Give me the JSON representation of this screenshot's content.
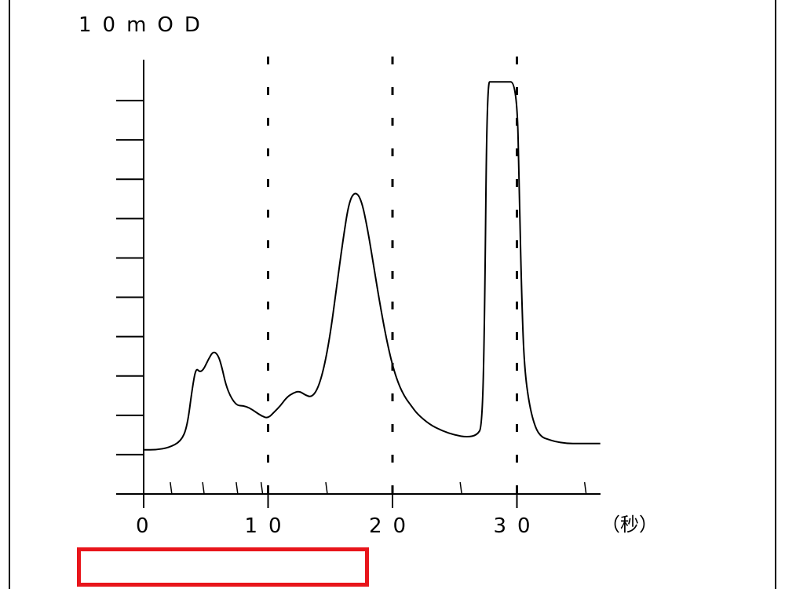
{
  "chart_data": {
    "type": "line",
    "ylabel": "10mOD",
    "xunit": "（秒）",
    "xlim": [
      0,
      37
    ],
    "ylim": [
      0,
      11
    ],
    "x_ticks": [
      {
        "value": 0,
        "label": "0"
      },
      {
        "value": 10,
        "label": "10"
      },
      {
        "value": 20,
        "label": "20"
      },
      {
        "value": 30,
        "label": "30"
      }
    ],
    "x_minor_ticks": [
      2.2,
      4.8,
      7.5,
      9.5,
      14.7,
      25.5,
      35.5
    ],
    "y_ticks": [
      1,
      2,
      3,
      4,
      5,
      6,
      7,
      8,
      9,
      10
    ],
    "gridlines_x": [
      10,
      20,
      30
    ],
    "series": [
      {
        "x": [
          0,
          1,
          2,
          3,
          3.5,
          3.9,
          4.2,
          4.5,
          4.8,
          5.2,
          5.6,
          6.0,
          6.3,
          6.6,
          7.0,
          7.5,
          8.0,
          8.5,
          9.0,
          9.5,
          10.0,
          10.5,
          11.0,
          11.5,
          12.0,
          12.5,
          13.0,
          13.5,
          14.0,
          14.5,
          15.0,
          15.5,
          16.0,
          16.5,
          17.0,
          17.5,
          18.0,
          18.5,
          19.0,
          19.5,
          20.0,
          20.5,
          21.0,
          21.5,
          22.0,
          23.0,
          24.0,
          25.0,
          26.0,
          26.8,
          27.2,
          27.4,
          27.6,
          28.0,
          29.0,
          30.0,
          30.2,
          30.4,
          30.6,
          31.0,
          31.5,
          32.0,
          32.5,
          33.0,
          34.0,
          35.0,
          36.7
        ],
        "values": [
          1.05,
          1.05,
          1.1,
          1.25,
          1.6,
          2.5,
          3.0,
          2.9,
          2.95,
          3.2,
          3.4,
          3.3,
          3.0,
          2.6,
          2.3,
          2.1,
          2.1,
          2.05,
          1.95,
          1.85,
          1.8,
          1.95,
          2.1,
          2.3,
          2.4,
          2.45,
          2.35,
          2.3,
          2.5,
          3.0,
          3.8,
          4.9,
          6.0,
          6.95,
          7.2,
          7.0,
          6.3,
          5.4,
          4.5,
          3.7,
          3.05,
          2.6,
          2.3,
          2.1,
          1.9,
          1.65,
          1.5,
          1.4,
          1.35,
          1.4,
          1.6,
          4.0,
          9.8,
          9.8,
          9.8,
          9.8,
          7.0,
          4.5,
          3.0,
          2.1,
          1.55,
          1.35,
          1.3,
          1.25,
          1.2,
          1.2,
          1.2
        ]
      }
    ]
  }
}
